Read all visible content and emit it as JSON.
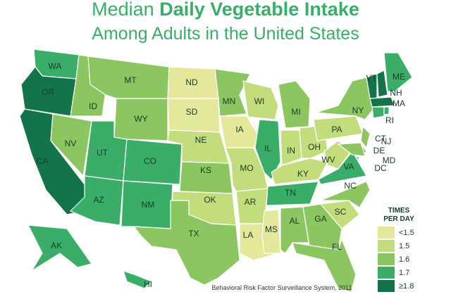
{
  "title": [
    "Median",
    "Daily Vegetable Intake"
  ],
  "subtitle": "Among Adults in the United States",
  "source": "Behavioral Risk Factor Surveillance System, 2011",
  "legend": {
    "title": [
      "TIMES",
      "PER DAY"
    ],
    "items": [
      {
        "label": "<1.5",
        "color": "#e4e89a"
      },
      {
        "label": "1.5",
        "color": "#c3dc7c"
      },
      {
        "label": "1.6",
        "color": "#8cc660"
      },
      {
        "label": "1.7",
        "color": "#3aae68"
      },
      {
        "label": "≥1.8",
        "color": "#13744a"
      }
    ]
  },
  "states": [
    {
      "label": "WA",
      "color": "#3aae68"
    },
    {
      "label": "OR",
      "color": "#13744a"
    },
    {
      "label": "CA",
      "color": "#13744a"
    },
    {
      "label": "ID",
      "color": "#8cc660"
    },
    {
      "label": "NV",
      "color": "#8cc660"
    },
    {
      "label": "MT",
      "color": "#8cc660"
    },
    {
      "label": "WY",
      "color": "#8cc660"
    },
    {
      "label": "UT",
      "color": "#3aae68"
    },
    {
      "label": "CO",
      "color": "#3aae68"
    },
    {
      "label": "AZ",
      "color": "#3aae68"
    },
    {
      "label": "NM",
      "color": "#3aae68"
    },
    {
      "label": "ND",
      "color": "#e4e89a"
    },
    {
      "label": "SD",
      "color": "#e4e89a"
    },
    {
      "label": "NE",
      "color": "#c3dc7c"
    },
    {
      "label": "KS",
      "color": "#8cc660"
    },
    {
      "label": "OK",
      "color": "#c3dc7c"
    },
    {
      "label": "TX",
      "color": "#8cc660"
    },
    {
      "label": "MN",
      "color": "#8cc660"
    },
    {
      "label": "IA",
      "color": "#e4e89a"
    },
    {
      "label": "MO",
      "color": "#c3dc7c"
    },
    {
      "label": "AR",
      "color": "#c3dc7c"
    },
    {
      "label": "LA",
      "color": "#e4e89a"
    },
    {
      "label": "WI",
      "color": "#c3dc7c"
    },
    {
      "label": "IL",
      "color": "#3aae68"
    },
    {
      "label": "MS",
      "color": "#e4e89a"
    },
    {
      "label": "MI",
      "color": "#8cc660"
    },
    {
      "label": "IN",
      "color": "#c3dc7c"
    },
    {
      "label": "OH",
      "color": "#c3dc7c"
    },
    {
      "label": "KY",
      "color": "#c3dc7c"
    },
    {
      "label": "TN",
      "color": "#3aae68"
    },
    {
      "label": "AL",
      "color": "#8cc660"
    },
    {
      "label": "GA",
      "color": "#8cc660"
    },
    {
      "label": "FL",
      "color": "#8cc660"
    },
    {
      "label": "SC",
      "color": "#c3dc7c"
    },
    {
      "label": "NC",
      "color": "#8cc660"
    },
    {
      "label": "VA",
      "color": "#3aae68"
    },
    {
      "label": "WV",
      "color": "#c3dc7c"
    },
    {
      "label": "PA",
      "color": "#c3dc7c"
    },
    {
      "label": "NY",
      "color": "#8cc660"
    },
    {
      "label": "NJ",
      "color": "#8cc660"
    },
    {
      "label": "DE",
      "color": "#8cc660"
    },
    {
      "label": "MD",
      "color": "#8cc660"
    },
    {
      "label": "VT",
      "color": "#13744a"
    },
    {
      "label": "NH",
      "color": "#13744a"
    },
    {
      "label": "ME",
      "color": "#3aae68"
    },
    {
      "label": "MA",
      "color": "#13744a"
    },
    {
      "label": "CT",
      "color": "#3aae68"
    },
    {
      "label": "RI",
      "color": "#3aae68"
    },
    {
      "label": "DC",
      "color": "#3aae68"
    },
    {
      "label": "AK",
      "color": "#3aae68"
    },
    {
      "label": "HI",
      "color": "#3aae68"
    }
  ]
}
